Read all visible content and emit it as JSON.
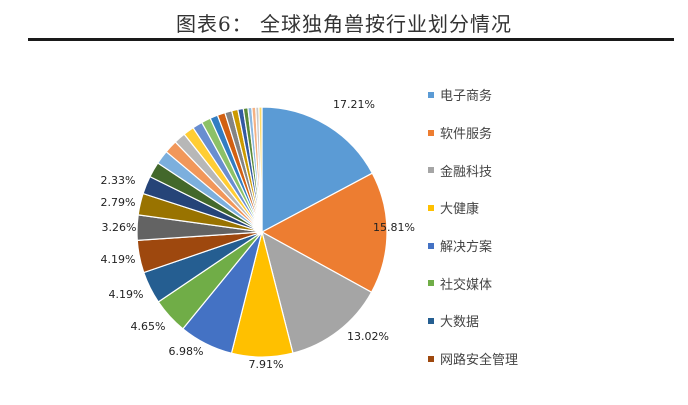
{
  "title": "图表6： 全球独角兽按行业划分情况",
  "chart_data": {
    "type": "pie",
    "slices": [
      {
        "name": "电子商务",
        "value": 17.21,
        "label": "17.21%",
        "color": "#5b9bd5"
      },
      {
        "name": "软件服务",
        "value": 15.81,
        "label": "15.81%",
        "color": "#ed7d31"
      },
      {
        "name": "金融科技",
        "value": 13.02,
        "label": "13.02%",
        "color": "#a5a5a5"
      },
      {
        "name": "大健康",
        "value": 7.91,
        "label": "7.91%",
        "color": "#ffc000"
      },
      {
        "name": "解决方案",
        "value": 6.98,
        "label": "6.98%",
        "color": "#4472c4"
      },
      {
        "name": "社交媒体",
        "value": 4.65,
        "label": "4.65%",
        "color": "#70ad47"
      },
      {
        "name": "大数据",
        "value": 4.19,
        "label": "4.19%",
        "color": "#255e91"
      },
      {
        "name": "网路安全管理",
        "value": 4.19,
        "label": "4.19%",
        "color": "#9e480e"
      },
      {
        "name": "",
        "value": 3.26,
        "label": "3.26%",
        "color": "#636363"
      },
      {
        "name": "",
        "value": 2.79,
        "label": "2.79%",
        "color": "#997300"
      },
      {
        "name": "",
        "value": 2.33,
        "label": "2.33%",
        "color": "#264478"
      },
      {
        "name": "",
        "value": 2.0,
        "label": "",
        "color": "#43682b"
      },
      {
        "name": "",
        "value": 1.8,
        "label": "",
        "color": "#7cafdd"
      },
      {
        "name": "",
        "value": 1.7,
        "label": "",
        "color": "#f1975a"
      },
      {
        "name": "",
        "value": 1.5,
        "label": "",
        "color": "#b7b7b7"
      },
      {
        "name": "",
        "value": 1.4,
        "label": "",
        "color": "#ffcd33"
      },
      {
        "name": "",
        "value": 1.3,
        "label": "",
        "color": "#698ed0"
      },
      {
        "name": "",
        "value": 1.2,
        "label": "",
        "color": "#8cc168"
      },
      {
        "name": "",
        "value": 1.0,
        "label": "",
        "color": "#327dc2"
      },
      {
        "name": "",
        "value": 1.0,
        "label": "",
        "color": "#d26012"
      },
      {
        "name": "",
        "value": 0.9,
        "label": "",
        "color": "#848484"
      },
      {
        "name": "",
        "value": 0.8,
        "label": "",
        "color": "#cc9a00"
      },
      {
        "name": "",
        "value": 0.7,
        "label": "",
        "color": "#335aa1"
      },
      {
        "name": "",
        "value": 0.6,
        "label": "",
        "color": "#5a8a39"
      },
      {
        "name": "",
        "value": 0.5,
        "label": "",
        "color": "#8cb8e0"
      },
      {
        "name": "",
        "value": 0.5,
        "label": "",
        "color": "#f4b183"
      },
      {
        "name": "",
        "value": 0.4,
        "label": "",
        "color": "#c9c9c9"
      },
      {
        "name": "",
        "value": 0.4,
        "label": "",
        "color": "#ffd966"
      }
    ],
    "legend": [
      "电子商务",
      "软件服务",
      "金融科技",
      "大健康",
      "解决方案",
      "社交媒体",
      "大数据",
      "网路安全管理"
    ],
    "legend_position": "right"
  }
}
